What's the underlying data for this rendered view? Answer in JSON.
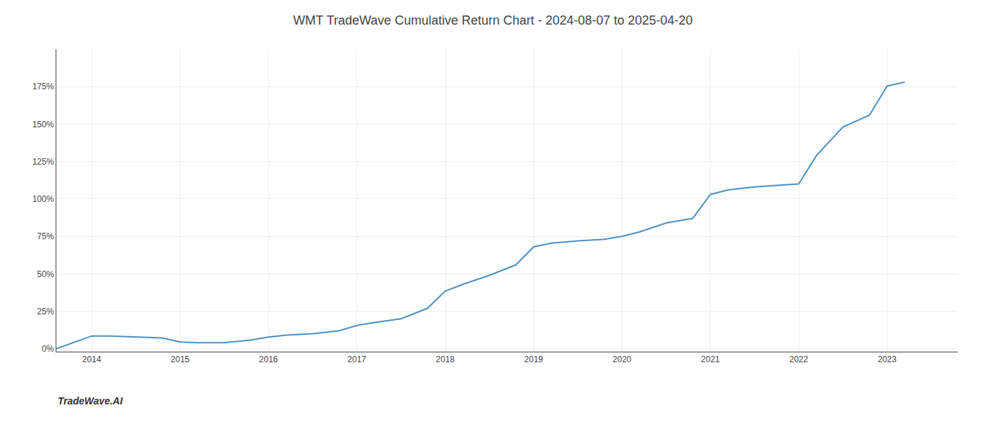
{
  "chart_data": {
    "type": "line",
    "title": "WMT TradeWave Cumulative Return Chart - 2024-08-07 to 2025-04-20",
    "annotations": [
      {
        "text": "TradeWave.AI"
      }
    ],
    "x": [
      2013.6,
      2014.0,
      2014.2,
      2014.5,
      2014.8,
      2015.0,
      2015.2,
      2015.5,
      2015.8,
      2016.0,
      2016.2,
      2016.5,
      2016.8,
      2017.0,
      2017.2,
      2017.5,
      2017.8,
      2018.0,
      2018.2,
      2018.5,
      2018.8,
      2019.0,
      2019.2,
      2019.5,
      2019.8,
      2020.0,
      2020.2,
      2020.5,
      2020.8,
      2021.0,
      2021.2,
      2021.5,
      2021.8,
      2022.0,
      2022.2,
      2022.5,
      2022.8,
      2023.0,
      2023.2
    ],
    "values": [
      0.0,
      0.085,
      0.085,
      0.078,
      0.072,
      0.045,
      0.04,
      0.04,
      0.058,
      0.078,
      0.09,
      0.1,
      0.12,
      0.155,
      0.175,
      0.2,
      0.27,
      0.385,
      0.43,
      0.49,
      0.56,
      0.68,
      0.705,
      0.72,
      0.73,
      0.75,
      0.78,
      0.84,
      0.87,
      1.03,
      1.06,
      1.08,
      1.09,
      1.1,
      1.29,
      1.48,
      1.56,
      1.755,
      1.78
    ],
    "color": "#4a90c4",
    "xlim": [
      2013.6,
      2023.8
    ],
    "xticks": [
      2014,
      2015,
      2016,
      2017,
      2018,
      2019,
      2020,
      2021,
      2022,
      2023
    ],
    "ylim": [
      -0.02,
      2.0
    ],
    "yticks": [
      {
        "value": 0.0,
        "label": "0%"
      },
      {
        "value": 0.25,
        "label": "25%"
      },
      {
        "value": 0.5,
        "label": "50%"
      },
      {
        "value": 0.75,
        "label": "75%"
      },
      {
        "value": 1.0,
        "label": "100%"
      },
      {
        "value": 1.25,
        "label": "125%"
      },
      {
        "value": 1.5,
        "label": "150%"
      },
      {
        "value": 1.75,
        "label": "175%"
      }
    ],
    "grid": true
  }
}
